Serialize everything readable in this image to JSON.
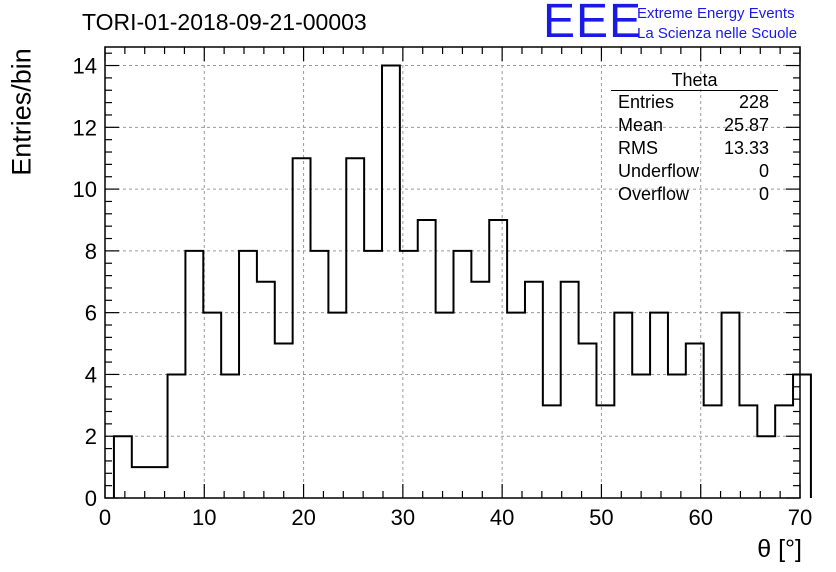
{
  "title": "TORI-01-2018-09-21-00003",
  "logo": {
    "mark": "EEE",
    "line1": "Extreme Energy Events",
    "line2": "La Scienza nelle Scuole",
    "color": "#1a1ae6"
  },
  "stats": {
    "title": "Theta",
    "rows": [
      {
        "label": "Entries",
        "value": "228"
      },
      {
        "label": "Mean",
        "value": "25.87"
      },
      {
        "label": "RMS",
        "value": "13.33"
      },
      {
        "label": "Underflow",
        "value": "0"
      },
      {
        "label": "Overflow",
        "value": "0"
      }
    ]
  },
  "chart_data": {
    "type": "bar",
    "subtype": "histogram",
    "title": "TORI-01-2018-09-21-00003",
    "xlabel": "θ [°]",
    "ylabel": "Entries/bin",
    "xlim": [
      0,
      70
    ],
    "ylim": [
      0,
      14.6
    ],
    "xticks": [
      0,
      10,
      20,
      30,
      40,
      50,
      60,
      70
    ],
    "yticks": [
      0,
      2,
      4,
      6,
      8,
      10,
      12,
      14
    ],
    "grid": true,
    "bin_width": 1.8,
    "bin_start": 0.9,
    "values": [
      2,
      1,
      1,
      4,
      8,
      6,
      4,
      8,
      7,
      5,
      11,
      8,
      6,
      11,
      8,
      14,
      8,
      9,
      6,
      8,
      7,
      9,
      6,
      7,
      3,
      7,
      5,
      3,
      6,
      4,
      6,
      4,
      5,
      3,
      6,
      3,
      2,
      3,
      4
    ]
  }
}
